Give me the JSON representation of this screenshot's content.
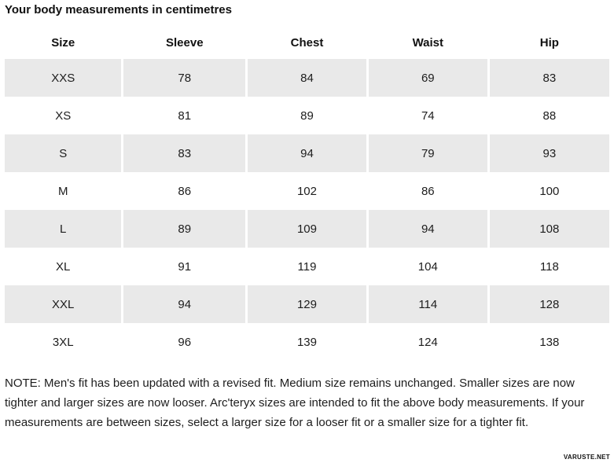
{
  "title": "Your body measurements in centimetres",
  "table": {
    "headers": [
      "Size",
      "Sleeve",
      "Chest",
      "Waist",
      "Hip"
    ],
    "rows": [
      [
        "XXS",
        "78",
        "84",
        "69",
        "83"
      ],
      [
        "XS",
        "81",
        "89",
        "74",
        "88"
      ],
      [
        "S",
        "83",
        "94",
        "79",
        "93"
      ],
      [
        "M",
        "86",
        "102",
        "86",
        "100"
      ],
      [
        "L",
        "89",
        "109",
        "94",
        "108"
      ],
      [
        "XL",
        "91",
        "119",
        "104",
        "118"
      ],
      [
        "XXL",
        "94",
        "129",
        "114",
        "128"
      ],
      [
        "3XL",
        "96",
        "139",
        "124",
        "138"
      ]
    ]
  },
  "note": "NOTE: Men's fit has been updated with a revised fit. Medium size remains unchanged. Smaller sizes are now tighter and larger sizes are now looser. Arc'teryx sizes are intended to fit the above body measurements. If your measurements are between sizes, select a larger size for a looser fit or a smaller size for a tighter fit.",
  "watermark": "VARUSTE.NET",
  "colors": {
    "row_alt": "#e9e9e9",
    "text": "#1d1d1d"
  }
}
